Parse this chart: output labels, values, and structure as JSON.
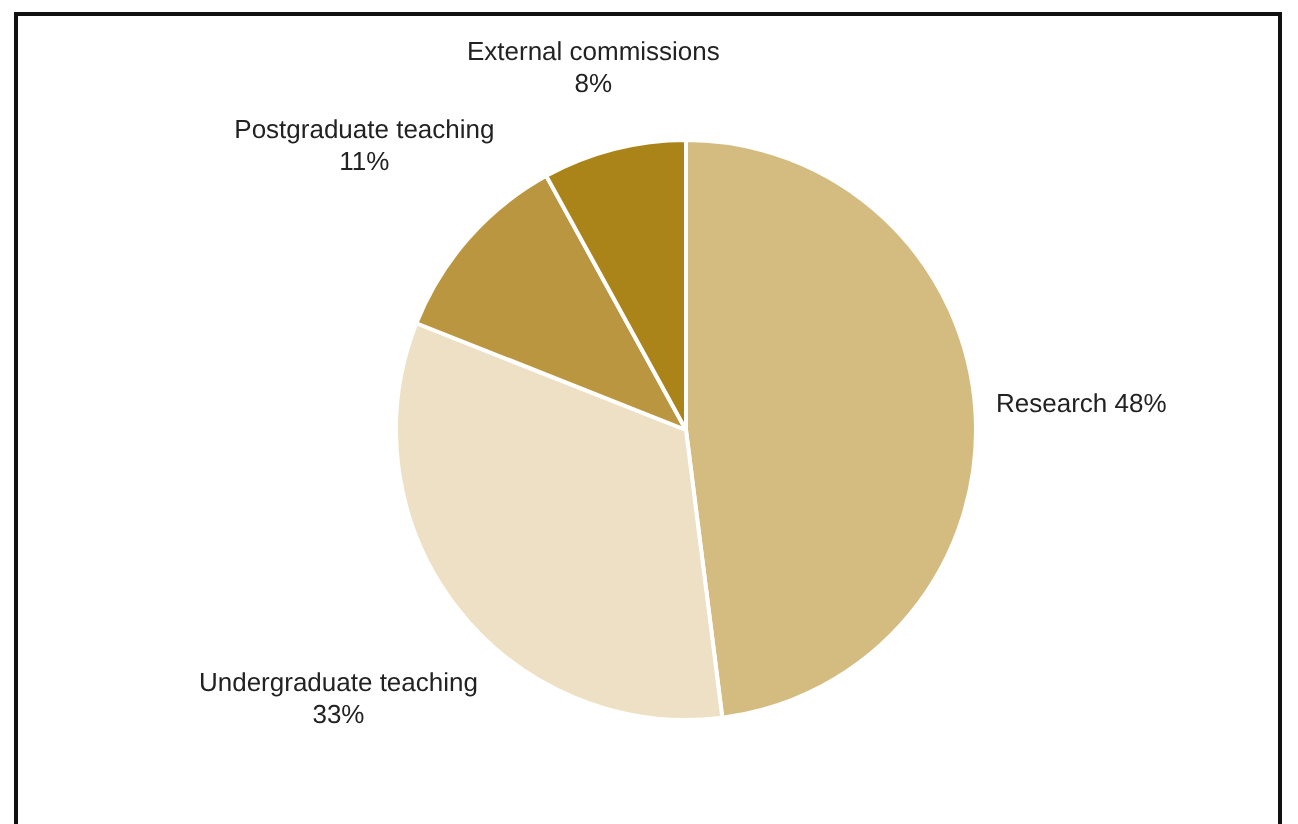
{
  "chart_data": {
    "type": "pie",
    "categories": [
      "Research",
      "Undergraduate teaching",
      "Postgraduate teaching",
      "External commissions"
    ],
    "values": [
      48,
      33,
      11,
      8
    ],
    "value_labels": [
      "48%",
      "33%",
      "11%",
      "8%"
    ],
    "colors": [
      "#d4bc80",
      "#ede0c4",
      "#bb9640",
      "#aa8418"
    ],
    "legend": false
  }
}
